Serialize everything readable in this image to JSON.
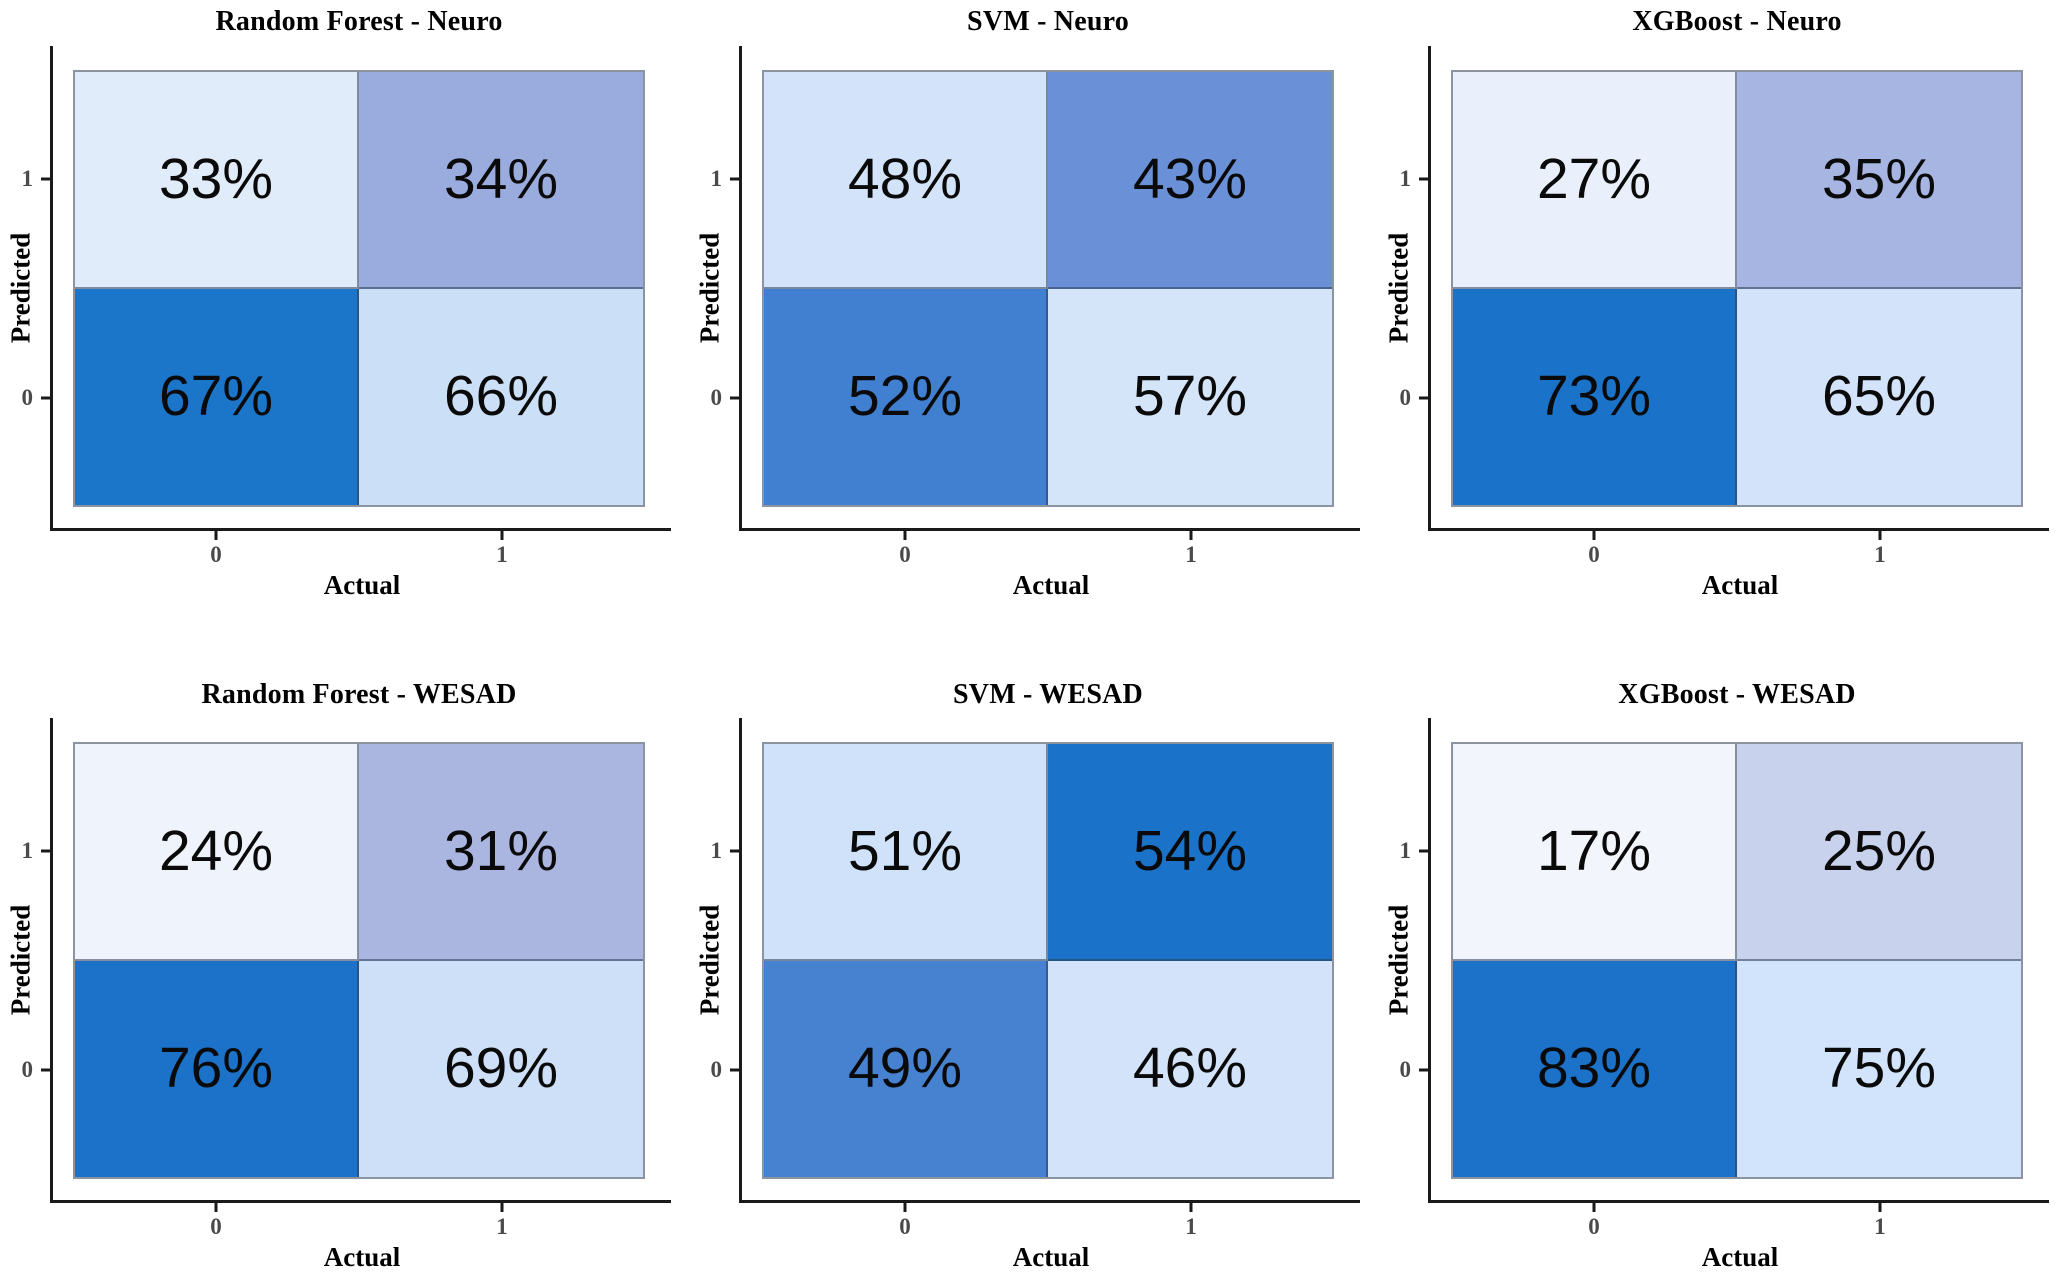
{
  "chart_data": [
    {
      "type": "heatmap",
      "title": "Random Forest - Neuro",
      "xlabel": "Actual",
      "ylabel": "Predicted",
      "x_categories": [
        "0",
        "1"
      ],
      "y_categories": [
        "1",
        "0"
      ],
      "values": [
        [
          33,
          34
        ],
        [
          67,
          66
        ]
      ],
      "cell_labels": [
        "33%",
        "34%",
        "67%",
        "66%"
      ],
      "cell_colors": [
        "#e1ecfa",
        "#9aabdd",
        "#1b76c9",
        "#cbdff7"
      ]
    },
    {
      "type": "heatmap",
      "title": "SVM - Neuro",
      "xlabel": "Actual",
      "ylabel": "Predicted",
      "x_categories": [
        "0",
        "1"
      ],
      "y_categories": [
        "1",
        "0"
      ],
      "values": [
        [
          48,
          43
        ],
        [
          52,
          57
        ]
      ],
      "cell_labels": [
        "48%",
        "43%",
        "52%",
        "57%"
      ],
      "cell_colors": [
        "#d3e3f9",
        "#6a91d7",
        "#417fd0",
        "#d4e4f9"
      ]
    },
    {
      "type": "heatmap",
      "title": "XGBoost - Neuro",
      "xlabel": "Actual",
      "ylabel": "Predicted",
      "x_categories": [
        "0",
        "1"
      ],
      "y_categories": [
        "1",
        "0"
      ],
      "values": [
        [
          27,
          35
        ],
        [
          73,
          65
        ]
      ],
      "cell_labels": [
        "27%",
        "35%",
        "73%",
        "65%"
      ],
      "cell_colors": [
        "#e9f0fb",
        "#a6b5e1",
        "#1b73c9",
        "#d2e3fa"
      ]
    },
    {
      "type": "heatmap",
      "title": "Random Forest - WESAD",
      "xlabel": "Actual",
      "ylabel": "Predicted",
      "x_categories": [
        "0",
        "1"
      ],
      "y_categories": [
        "1",
        "0"
      ],
      "values": [
        [
          24,
          31
        ],
        [
          76,
          69
        ]
      ],
      "cell_labels": [
        "24%",
        "31%",
        "76%",
        "69%"
      ],
      "cell_colors": [
        "#eff4fc",
        "#aab5e0",
        "#1b72c8",
        "#cee0f8"
      ]
    },
    {
      "type": "heatmap",
      "title": "SVM - WESAD",
      "xlabel": "Actual",
      "ylabel": "Predicted",
      "x_categories": [
        "0",
        "1"
      ],
      "y_categories": [
        "1",
        "0"
      ],
      "values": [
        [
          51,
          54
        ],
        [
          49,
          46
        ]
      ],
      "cell_labels": [
        "51%",
        "54%",
        "49%",
        "46%"
      ],
      "cell_colors": [
        "#cfe2f9",
        "#1a73c8",
        "#4782d1",
        "#d2e3fa"
      ]
    },
    {
      "type": "heatmap",
      "title": "XGBoost - WESAD",
      "xlabel": "Actual",
      "ylabel": "Predicted",
      "x_categories": [
        "0",
        "1"
      ],
      "y_categories": [
        "1",
        "0"
      ],
      "values": [
        [
          17,
          25
        ],
        [
          83,
          75
        ]
      ],
      "cell_labels": [
        "17%",
        "25%",
        "83%",
        "75%"
      ],
      "cell_colors": [
        "#f2f6fc",
        "#c9d2ec",
        "#1b72c8",
        "#d2e4fb"
      ]
    }
  ]
}
